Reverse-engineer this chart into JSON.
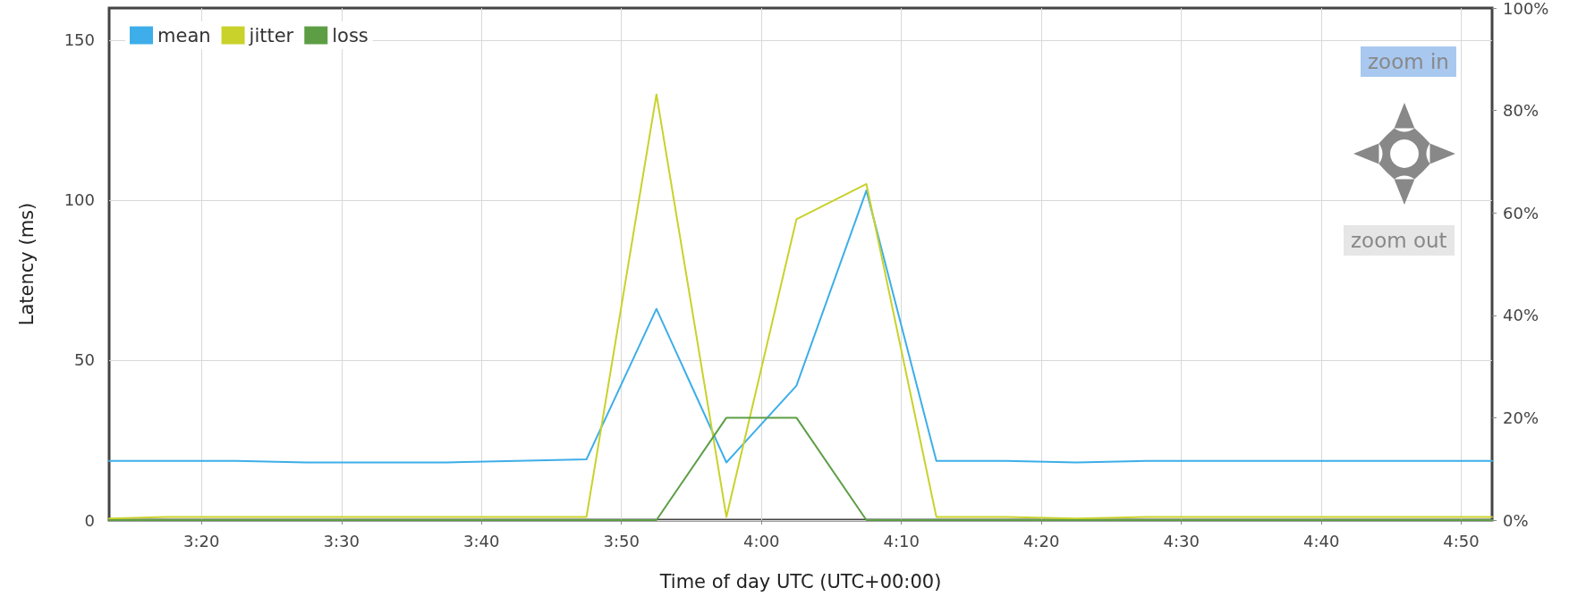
{
  "chart_data": {
    "type": "line",
    "xlabel": "Time of day UTC (UTC+00:00)",
    "ylabel": "Latency (ms)",
    "x": [
      3.2233,
      3.2917,
      3.375,
      3.4583,
      3.5417,
      3.625,
      3.7083,
      3.7917,
      3.875,
      3.9583,
      4.0417,
      4.125,
      4.2083,
      4.2917,
      4.375,
      4.4583,
      4.5417,
      4.625,
      4.7083,
      4.7917,
      4.87
    ],
    "series": [
      {
        "name": "mean",
        "color": "#3daee9",
        "values": [
          18.5,
          18.5,
          18.5,
          18,
          18,
          18,
          18.5,
          19,
          66,
          18,
          42,
          103,
          18.5,
          18.5,
          18,
          18.5,
          18.5,
          18.5,
          18.5,
          18.5,
          18.5
        ]
      },
      {
        "name": "jitter",
        "color": "#c8d22a",
        "values": [
          0.5,
          1,
          1,
          1,
          1,
          1,
          1,
          1,
          133,
          1,
          94,
          105,
          1,
          1,
          0.5,
          1,
          1,
          1,
          1,
          1,
          1
        ]
      },
      {
        "name": "loss",
        "color": "#5d9e45",
        "axis": "y2",
        "values": [
          0,
          0,
          0,
          0,
          0,
          0,
          0,
          0,
          0,
          20,
          20,
          0,
          0,
          0,
          0,
          0,
          0,
          0,
          0,
          0,
          0
        ]
      }
    ],
    "xlim": [
      3.2233,
      4.87
    ],
    "xticks": [
      {
        "value": 3.3333,
        "label": "3:20"
      },
      {
        "value": 3.5,
        "label": "3:30"
      },
      {
        "value": 3.6667,
        "label": "3:40"
      },
      {
        "value": 3.8333,
        "label": "3:50"
      },
      {
        "value": 4,
        "label": "4:00"
      },
      {
        "value": 4.1667,
        "label": "4:10"
      },
      {
        "value": 4.3333,
        "label": "4:20"
      },
      {
        "value": 4.5,
        "label": "4:30"
      },
      {
        "value": 4.6667,
        "label": "4:40"
      },
      {
        "value": 4.8333,
        "label": "4:50"
      }
    ],
    "ylim": [
      0,
      160
    ],
    "yticks": [
      0,
      50,
      100,
      150
    ],
    "y2lim": [
      0,
      100
    ],
    "y2ticks": [
      {
        "value": 0,
        "label": "0%"
      },
      {
        "value": 20,
        "label": "20%"
      },
      {
        "value": 40,
        "label": "40%"
      },
      {
        "value": 60,
        "label": "60%"
      },
      {
        "value": 80,
        "label": "80%"
      },
      {
        "value": 100,
        "label": "100%"
      }
    ],
    "grid": true,
    "legend": "top left",
    "marker": "none",
    "line_style": "solid",
    "annotations": [
      "zoom in",
      "zoom out"
    ]
  }
}
